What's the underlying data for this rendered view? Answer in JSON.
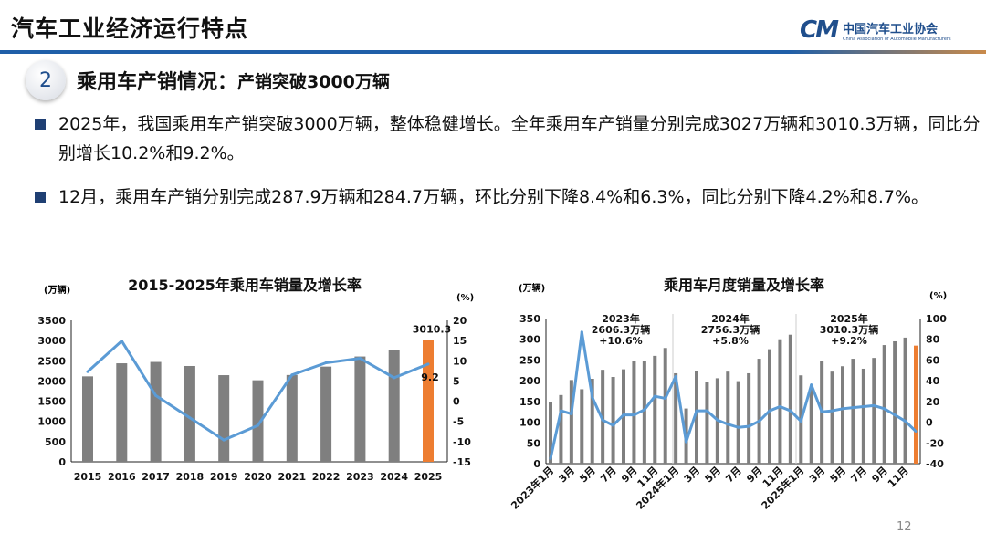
{
  "header": {
    "title": "汽车工业经济运行特点",
    "logo_cn": "中国汽车工业协会",
    "logo_en": "China Association of Automobile Manufacturers",
    "logo_mark": "CAM"
  },
  "section": {
    "number": "2",
    "title": "乘用车产销情况：",
    "subtitle": "产销突破3000万辆"
  },
  "bullets": [
    "2025年，我国乘用车产销突破3000万辆，整体稳健增长。全年乘用车产销量分别完成3027万辆和3010.3万辆，同比分别增长10.2%和9.2%。",
    "12月，乘用车产销分别完成287.9万辆和284.7万辆，环比分别下降8.4%和6.3%，同比分别下降4.2%和8.7%。"
  ],
  "page_number": "12",
  "colors": {
    "bar": "#7f7f7f",
    "highlight_bar": "#ed7d31",
    "line": "#5b9bd5",
    "brand": "#1f4e8c"
  },
  "chart_data": [
    {
      "type": "bar+line",
      "title": "2015-2025年乘用车销量及增长率",
      "ylabel": "(万辆)",
      "y2label": "(%)",
      "ylim": [
        0,
        3500
      ],
      "y2lim": [
        -15,
        20
      ],
      "yticks": [
        0,
        500,
        1000,
        1500,
        2000,
        2500,
        3000,
        3500
      ],
      "y2ticks": [
        -15,
        -10,
        -5,
        0,
        5,
        10,
        15,
        20
      ],
      "categories": [
        "2015",
        "2016",
        "2017",
        "2018",
        "2019",
        "2020",
        "2021",
        "2022",
        "2023",
        "2024",
        "2025"
      ],
      "bars": [
        2114.6,
        2437.7,
        2471.8,
        2371.0,
        2144.4,
        2017.8,
        2148.2,
        2356.3,
        2606.3,
        2756.3,
        3010.3
      ],
      "line": [
        7.3,
        14.9,
        1.4,
        -4.1,
        -9.6,
        -6.0,
        6.5,
        9.5,
        10.6,
        5.8,
        9.2
      ],
      "labels": {
        "bar_last": "3010.3",
        "line_last": "9.2"
      },
      "grid": false
    },
    {
      "type": "bar+line",
      "title": "乘用车月度销量及增长率",
      "ylabel": "(万辆)",
      "y2label": "(%)",
      "ylim": [
        0,
        350
      ],
      "y2lim": [
        -40,
        100
      ],
      "yticks": [
        0,
        50,
        100,
        150,
        200,
        250,
        300,
        350
      ],
      "y2ticks": [
        -40,
        -20,
        0,
        20,
        40,
        60,
        80,
        100
      ],
      "xticklabels": [
        "2023年1月",
        "",
        "3月",
        "",
        "5月",
        "",
        "7月",
        "",
        "9月",
        "",
        "11月",
        "",
        "2024年1月",
        "",
        "3月",
        "",
        "5月",
        "",
        "7月",
        "",
        "9月",
        "",
        "11月",
        "",
        "2025年1月",
        "",
        "3月",
        "",
        "5月",
        "",
        "7月",
        "",
        "9月",
        "",
        "11月",
        ""
      ],
      "bars": [
        147.6,
        165.5,
        201.7,
        179.5,
        204.7,
        226.4,
        209.1,
        227.6,
        248.4,
        248.2,
        260,
        279,
        218,
        133,
        224,
        198,
        206,
        222,
        199,
        218,
        253,
        276,
        300,
        311,
        213,
        181,
        247,
        222,
        235,
        253,
        229,
        255,
        286,
        295,
        304,
        284.7
      ],
      "line": [
        -35,
        11,
        8,
        87,
        24,
        2,
        -3,
        7,
        7,
        12,
        25,
        23,
        44,
        -19,
        11,
        11,
        2,
        -2,
        -5,
        -4,
        1,
        11,
        15,
        11,
        1,
        36,
        10,
        11,
        13,
        14,
        15,
        16,
        13,
        7,
        1,
        -8.7
      ],
      "annotations": [
        {
          "year": "2023年",
          "total": "2606.3万辆",
          "growth": "+10.6%"
        },
        {
          "year": "2024年",
          "total": "2756.3万辆",
          "growth": "+5.8%"
        },
        {
          "year": "2025年",
          "total": "3010.3万辆",
          "growth": "+9.2%"
        }
      ],
      "grid": false
    }
  ]
}
